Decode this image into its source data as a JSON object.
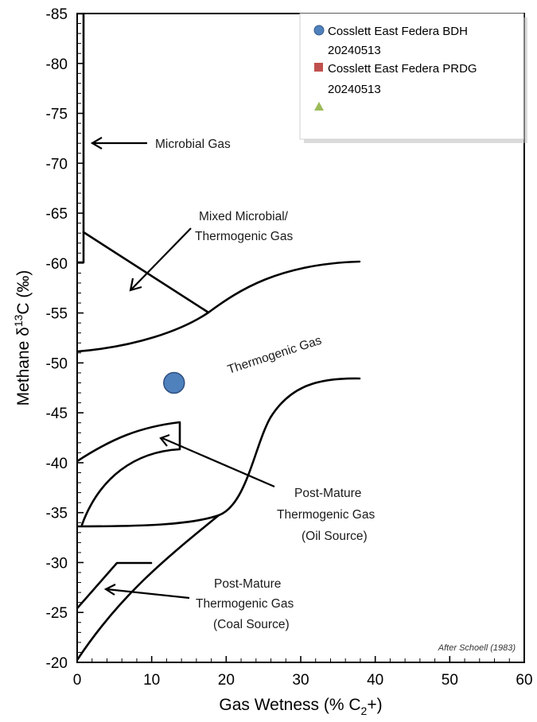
{
  "chart_data": {
    "type": "scatter",
    "xlabel": "Gas Wetness (% C",
    "xlabel_sub": "2",
    "xlabel_end": "+)",
    "ylabel_pre": "Methane  δ",
    "ylabel_sup": "13",
    "ylabel_post": "C (‰)",
    "xlim": [
      0,
      60
    ],
    "ylim": [
      -85,
      -20
    ],
    "y_reversed": true,
    "x_ticks": [
      "0",
      "10",
      "20",
      "30",
      "40",
      "50",
      "60"
    ],
    "y_ticks": [
      "-85",
      "-80",
      "-75",
      "-70",
      "-65",
      "-60",
      "-55",
      "-50",
      "-45",
      "-40",
      "-35",
      "-30",
      "-25",
      "-20"
    ],
    "legend_position": "top-right",
    "series": [
      {
        "name": "Cosslett East Federa BDH 20240513",
        "marker": "circle",
        "color": "#4f81bd",
        "points": [
          [
            13,
            -48
          ]
        ]
      },
      {
        "name": "Cosslett East Federa PRDG 20240513",
        "marker": "square",
        "color": "#c0504d",
        "points": []
      },
      {
        "name": "",
        "marker": "triangle",
        "color": "#9bbb59",
        "points": []
      }
    ],
    "annotations": [
      {
        "id": "microbial",
        "lines": [
          "Microbial Gas"
        ]
      },
      {
        "id": "mixed",
        "lines": [
          "Mixed Microbial/",
          "Thermogenic Gas"
        ]
      },
      {
        "id": "thermogenic",
        "lines": [
          "Thermogenic Gas"
        ]
      },
      {
        "id": "oil",
        "lines": [
          "Post-Mature",
          "Thermogenic Gas",
          "(Oil Source)"
        ]
      },
      {
        "id": "coal",
        "lines": [
          "Post-Mature",
          "Thermogenic Gas",
          "(Coal Source)"
        ]
      }
    ],
    "credit": "After Schoell (1983)"
  }
}
